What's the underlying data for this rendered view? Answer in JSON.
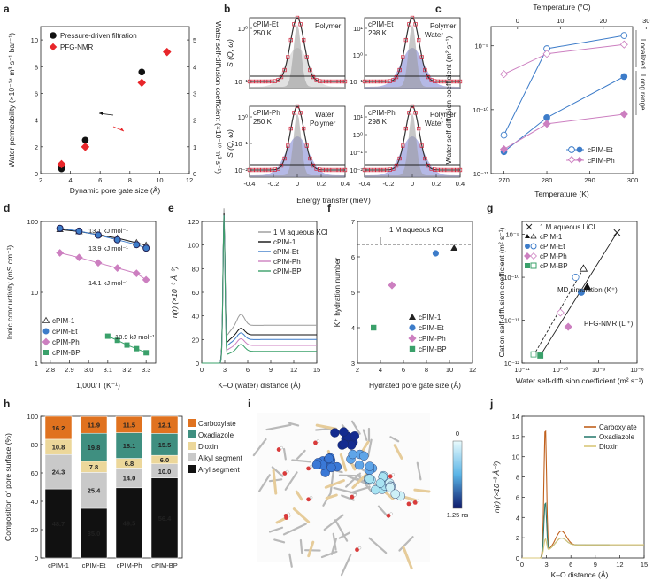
{
  "colors": {
    "black": "#111111",
    "red": "#e8262a",
    "blue": "#3d7cc9",
    "pink": "#cc7fc0",
    "green": "#3aa06a",
    "gray": "#9a9a9a"
  },
  "panel_labels": [
    "a",
    "b",
    "c",
    "d",
    "e",
    "f",
    "g",
    "h",
    "i",
    "j"
  ],
  "i_colorbar": {
    "top": "0",
    "bottom": "1.25 ns"
  },
  "chart_data": [
    {
      "panel": "a",
      "type": "scatter",
      "xlabel": "Dynamic pore gate size (Å)",
      "ylabel": "Water permeability (×10⁻¹⁴ m³ s⁻¹ bar⁻¹)",
      "ylabel2": "Water self-diffusion coefficient (×10⁻¹⁰ m² s⁻¹)",
      "xlim": [
        2,
        12
      ],
      "ylim": [
        0,
        11
      ],
      "y2lim": [
        0,
        5.5
      ],
      "xticks": [
        "2",
        "4",
        "6",
        "8",
        "10",
        "12"
      ],
      "yticks": [
        "0",
        "2",
        "4",
        "6",
        "8",
        "10"
      ],
      "y2ticks": [
        "0",
        "1",
        "2",
        "3",
        "4",
        "5"
      ],
      "series": [
        {
          "name": "Pressure-driven filtration",
          "x": [
            3.4,
            3.4,
            5.0,
            8.8
          ],
          "y": [
            0.35,
            0.55,
            2.5,
            7.6
          ]
        },
        {
          "name": "PFG-NMR",
          "x": [
            3.4,
            5.0,
            8.8,
            10.5
          ],
          "y": [
            0.7,
            2.0,
            6.8,
            9.1
          ]
        }
      ]
    },
    {
      "panel": "b",
      "type": "line",
      "xlabel": "Energy transfer (meV)",
      "ylabel": "S (Q, ω)",
      "xticks": [
        "-0.4",
        "-0.2",
        "0",
        "0.2",
        "0.4"
      ],
      "subplots": [
        {
          "label": "cPIM-Et",
          "cond": "250 K",
          "ticks": [
            "10⁰",
            "10⁻¹"
          ],
          "notes": [
            "Polymer"
          ]
        },
        {
          "label": "cPIM-Et",
          "cond": "298 K",
          "ticks": [
            "10¹",
            "10⁰",
            "10⁻¹"
          ],
          "notes": [
            "Polymer",
            "Water"
          ]
        },
        {
          "label": "cPIM-Ph",
          "cond": "250 K",
          "ticks": [
            "10⁰",
            "10⁻¹",
            "10⁻²"
          ],
          "notes": [
            "Water",
            "Polymer"
          ]
        },
        {
          "label": "cPIM-Ph",
          "cond": "298 K",
          "ticks": [
            "10¹",
            "10⁰",
            "10⁻¹",
            "10⁻²"
          ],
          "notes": [
            "Polymer",
            "Water"
          ]
        }
      ]
    },
    {
      "panel": "c",
      "type": "line",
      "xlabel": "Temperature (K)",
      "xlabel2": "Temperature (°C)",
      "ylabel": "Water self-diffusion coefficient (m² s⁻¹)",
      "xlim": [
        267,
        300
      ],
      "ylog": [
        1e-11,
        2e-09
      ],
      "xticks": [
        "270",
        "280",
        "290",
        "300"
      ],
      "x2ticks": [
        "0",
        "10",
        "20",
        "30"
      ],
      "yticks": [
        "10⁻⁹",
        "10⁻¹⁰",
        "10⁻¹¹"
      ],
      "regions": [
        "Localized",
        "Long range"
      ],
      "series": [
        {
          "name": "cPIM-Et",
          "x": [
            270,
            280,
            298
          ],
          "y_localized": [
            4e-11,
            9e-10,
            1.45e-09
          ],
          "y_longrange": [
            2.2e-11,
            7.5e-11,
            3.3e-10
          ]
        },
        {
          "name": "cPIM-Ph",
          "x": [
            270,
            280,
            298
          ],
          "y_localized": [
            3.6e-10,
            7.5e-10,
            1.05e-09
          ],
          "y_longrange": [
            2.4e-11,
            6e-11,
            8.5e-11
          ]
        }
      ]
    },
    {
      "panel": "d",
      "type": "scatter",
      "xlabel": "1,000/T (K⁻¹)",
      "ylabel": "Ionic conductivity (mS cm⁻¹)",
      "xlim": [
        2.75,
        3.35
      ],
      "ylog": [
        1,
        100
      ],
      "xticks": [
        "2.8",
        "2.9",
        "3.0",
        "3.1",
        "3.2",
        "3.3"
      ],
      "yticks": [
        "100",
        "10",
        "1"
      ],
      "series": [
        {
          "name": "cPIM-1",
          "x": [
            2.85,
            2.95,
            3.05,
            3.15,
            3.25,
            3.3
          ],
          "y": [
            77,
            72,
            65,
            58,
            50,
            46
          ],
          "ea": "13.1 kJ mol⁻¹"
        },
        {
          "name": "cPIM-Et",
          "x": [
            2.85,
            2.95,
            3.05,
            3.15,
            3.25,
            3.3
          ],
          "y": [
            80,
            73,
            64,
            55,
            47,
            42
          ],
          "ea": "13.9 kJ mol⁻¹"
        },
        {
          "name": "cPIM-Ph",
          "x": [
            2.85,
            2.95,
            3.05,
            3.15,
            3.25,
            3.3
          ],
          "y": [
            36,
            31,
            26,
            22,
            18.5,
            15
          ],
          "ea": "14.1 kJ mol⁻¹"
        },
        {
          "name": "cPIM-BP",
          "x": [
            3.1,
            3.15,
            3.2,
            3.25,
            3.3
          ],
          "y": [
            2.4,
            2.1,
            1.8,
            1.6,
            1.4
          ],
          "ea": "18.9 kJ mol⁻¹"
        }
      ]
    },
    {
      "panel": "e",
      "type": "line",
      "xlabel": "K–O (water) distance (Å)",
      "ylabel": "n(r) (×10⁻³ Å⁻³)",
      "xlim": [
        0,
        15
      ],
      "ylim": [
        0,
        120
      ],
      "xticks": [
        "0",
        "3",
        "6",
        "9",
        "12",
        "15"
      ],
      "yticks": [
        "0",
        "20",
        "40",
        "60",
        "80",
        "100",
        "120"
      ],
      "series": [
        {
          "name": "1 M aqueous KCl",
          "plateau": 32
        },
        {
          "name": "cPIM-1",
          "plateau": 24
        },
        {
          "name": "cPIM-Et",
          "plateau": 20
        },
        {
          "name": "cPIM-Ph",
          "plateau": 15
        },
        {
          "name": "cPIM-BP",
          "plateau": 10
        }
      ]
    },
    {
      "panel": "f",
      "type": "scatter",
      "xlabel": "Hydrated pore gate size (Å)",
      "ylabel": "K⁺ hydration number",
      "xlim": [
        2,
        12
      ],
      "ylim": [
        3,
        7
      ],
      "xticks": [
        "2",
        "4",
        "6",
        "8",
        "10",
        "12"
      ],
      "yticks": [
        "3",
        "4",
        "5",
        "6",
        "7"
      ],
      "ref": {
        "name": "1 M aqueous KCl",
        "y": 6.35
      },
      "series": [
        {
          "name": "cPIM-1",
          "x": 10.4,
          "y": 6.25
        },
        {
          "name": "cPIM-Et",
          "x": 8.8,
          "y": 6.1
        },
        {
          "name": "cPIM-Ph",
          "x": 5.0,
          "y": 5.2
        },
        {
          "name": "cPIM-BP",
          "x": 3.4,
          "y": 4.0
        }
      ]
    },
    {
      "panel": "g",
      "type": "scatter",
      "xlabel": "Water self-diffusion coefficient (m² s⁻¹)",
      "ylabel": "Cation self-diffusion coefficient (m² s⁻¹)",
      "xlog": [
        1e-11,
        1e-08
      ],
      "ylog": [
        1e-12,
        2e-09
      ],
      "xticks": [
        "10⁻¹¹",
        "10⁻¹⁰",
        "10⁻⁹",
        "10⁻⁸"
      ],
      "yticks": [
        "10⁻⁹",
        "10⁻¹⁰",
        "10⁻¹¹",
        "10⁻¹²"
      ],
      "annotations": [
        "MD simulation (K⁺)",
        "PFG-NMR (Li⁺)"
      ],
      "series": [
        {
          "name": "1 M aqueous LiCl",
          "x": [
            3e-09
          ],
          "y": [
            1.1e-09
          ]
        },
        {
          "name": "cPIM-1",
          "x": [
            5e-10,
            4e-10
          ],
          "y": [
            6e-11,
            1.6e-10
          ]
        },
        {
          "name": "cPIM-Et",
          "x": [
            3.5e-10,
            2.5e-10
          ],
          "y": [
            4.5e-11,
            1e-10
          ]
        },
        {
          "name": "cPIM-Ph",
          "x": [
            1.6e-10,
            1e-10
          ],
          "y": [
            7e-12,
            1.5e-11
          ]
        },
        {
          "name": "cPIM-BP",
          "x": [
            3e-11,
            2e-11
          ],
          "y": [
            1.5e-12,
            1.6e-12
          ]
        }
      ]
    },
    {
      "panel": "h",
      "type": "bar",
      "ylabel": "Composition of pore surface (%)",
      "categories": [
        "cPIM-1",
        "cPIM-Et",
        "cPIM-Ph",
        "cPIM-BP"
      ],
      "ylim": [
        0,
        100
      ],
      "yticks": [
        "0",
        "20",
        "40",
        "60",
        "80",
        "100"
      ],
      "series": [
        {
          "name": "Aryl segment",
          "values": [
            48.7,
            35.0,
            49.5,
            56.4
          ]
        },
        {
          "name": "Alkyl segment",
          "values": [
            24.3,
            25.4,
            14.0,
            10.0
          ]
        },
        {
          "name": "Dioxin",
          "values": [
            10.8,
            7.8,
            6.8,
            6.0
          ]
        },
        {
          "name": "Oxadiazole",
          "values": [
            0,
            19.8,
            18.1,
            15.5
          ]
        },
        {
          "name": "Carboxylate",
          "values": [
            16.2,
            11.9,
            11.5,
            12.1
          ]
        }
      ]
    },
    {
      "panel": "j",
      "type": "line",
      "xlabel": "K–O distance (Å)",
      "ylabel": "n(r) (×10⁻³ Å⁻³)",
      "xlim": [
        0,
        15
      ],
      "ylim": [
        0,
        14
      ],
      "xticks": [
        "0",
        "3",
        "6",
        "9",
        "12",
        "15"
      ],
      "yticks": [
        "0",
        "2",
        "4",
        "6",
        "8",
        "10",
        "12",
        "14"
      ],
      "series": [
        {
          "name": "Carboxylate",
          "peak": 12.6
        },
        {
          "name": "Oxadiazole",
          "peak": 5.1
        },
        {
          "name": "Dioxin",
          "peak": 1.4
        }
      ]
    }
  ]
}
